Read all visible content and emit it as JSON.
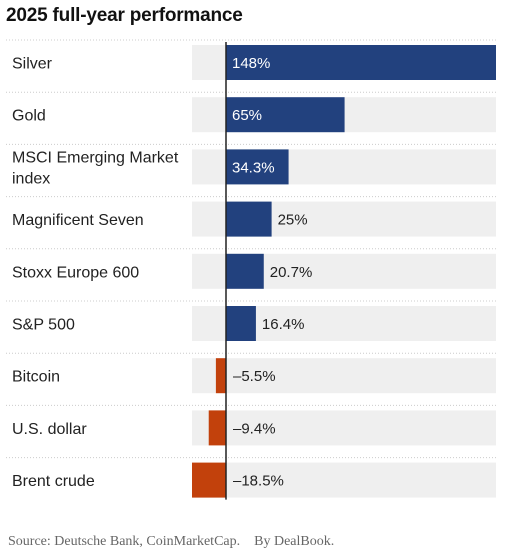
{
  "title": "2025 full-year performance",
  "source": "Source: Deutsche Bank, CoinMarketCap.",
  "byline": "By DealBook.",
  "colors": {
    "positive": "#22417e",
    "negative": "#c2410c",
    "track": "#efefef",
    "axis": "#222222",
    "separator": "#cccccc"
  },
  "chart_data": {
    "type": "bar",
    "orientation": "horizontal",
    "title": "2025 full-year performance",
    "unit": "%",
    "categories": [
      [
        "Silver"
      ],
      [
        "Gold"
      ],
      [
        "MSCI Emerging Market",
        "index"
      ],
      [
        "Magnificent Seven"
      ],
      [
        "Stoxx Europe 600"
      ],
      [
        "S&P 500"
      ],
      [
        "Bitcoin"
      ],
      [
        "U.S. dollar"
      ],
      [
        "Brent crude"
      ]
    ],
    "values": [
      148,
      65,
      34.3,
      25,
      20.7,
      16.4,
      -5.5,
      -9.4,
      -18.5
    ],
    "value_labels": [
      "148%",
      "65%",
      "34.3%",
      "25%",
      "20.7%",
      "16.4%",
      "–5.5%",
      "–9.4%",
      "–18.5%"
    ],
    "xlim": [
      -18.5,
      148
    ]
  }
}
